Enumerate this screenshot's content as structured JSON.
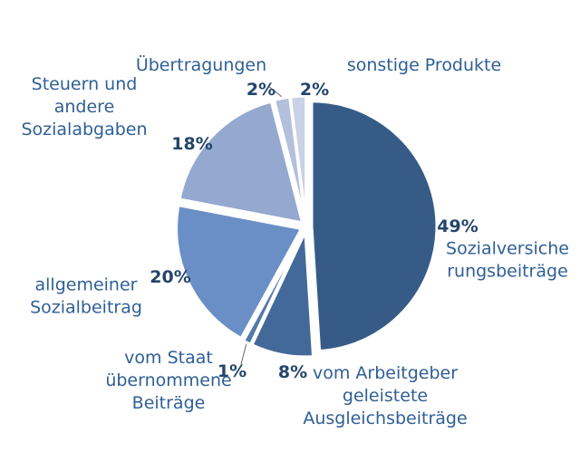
{
  "chart_data": {
    "type": "pie",
    "title": "",
    "slices": [
      {
        "label": [
          "Sozialversiche",
          "rungsbeiträge"
        ],
        "value": 49,
        "value_label": "49%",
        "color": "#365b87"
      },
      {
        "label": [
          "vom Arbeitgeber",
          "geleistete",
          "Ausgleichsbeiträge"
        ],
        "value": 8,
        "value_label": "8%",
        "color": "#43699a"
      },
      {
        "label": [
          "vom Staat",
          "übernommene",
          "Beiträge"
        ],
        "value": 1,
        "value_label": "1%",
        "color": "#5478ab"
      },
      {
        "label": [
          "allgemeiner",
          "Sozialbeitrag"
        ],
        "value": 20,
        "value_label": "20%",
        "color": "#6a8fc6"
      },
      {
        "label": [
          "Steuern und",
          "andere",
          "Sozialabgaben"
        ],
        "value": 18,
        "value_label": "18%",
        "color": "#94a8d0"
      },
      {
        "label": [
          "Übertragungen"
        ],
        "value": 2,
        "value_label": "2%",
        "color": "#b3bfdb"
      },
      {
        "label": [
          "sonstige Produkte"
        ],
        "value": 2,
        "value_label": "2%",
        "color": "#c9d2e6"
      }
    ]
  }
}
